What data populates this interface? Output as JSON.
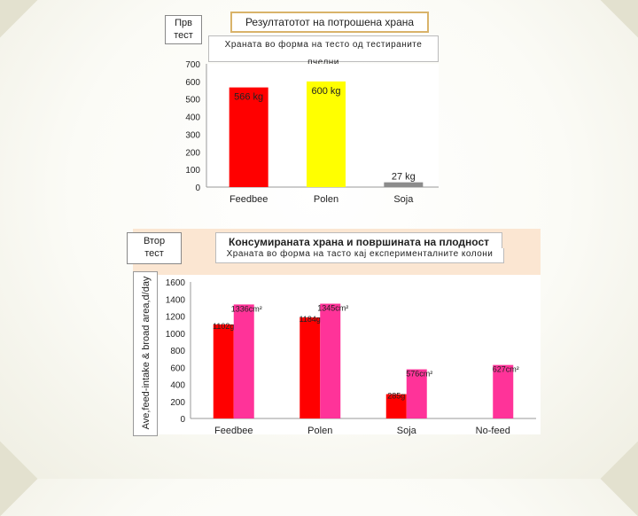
{
  "test1": {
    "label": "Прв\nтест",
    "title": "Резултатотот на потрошена храна",
    "subtitle": "Храната во форма на тесто од тестираните пчелни"
  },
  "test2": {
    "label": "Втор\nтест",
    "title": "Консумираната храна и површината на плодност",
    "subtitle": "Храната во форма на тасто кај експерименталните колони",
    "ylabel": "Ave,feed-intake & broad area,d/day"
  },
  "colors": {
    "red": "#ff0000",
    "yellow": "#ffff00",
    "gray": "#8c8c8c",
    "pink": "#ff3399"
  },
  "chart_data": [
    {
      "type": "bar",
      "categories": [
        "Feedbee",
        "Polen",
        "Soja"
      ],
      "values": [
        566,
        600,
        27
      ],
      "data_labels": [
        "566 kg",
        "600 kg",
        "27 kg"
      ],
      "ylim": [
        0,
        700
      ],
      "yticks": [
        0,
        100,
        200,
        300,
        400,
        500,
        600,
        700
      ],
      "colors": [
        "#ff0000",
        "#ffff00",
        "#8c8c8c"
      ],
      "grid": false
    },
    {
      "type": "bar",
      "categories": [
        "Feedbee",
        "Polen",
        "Soja",
        "No-feed"
      ],
      "series": [
        {
          "values": [
            1102,
            1184,
            285,
            null
          ],
          "labels": [
            "1102g",
            "1184g",
            "285g",
            ""
          ],
          "color": "#ff0000"
        },
        {
          "values": [
            1336,
            1345,
            576,
            627
          ],
          "labels": [
            "1336cm²",
            "1345cm²",
            "576cm²",
            "627cm²"
          ],
          "color": "#ff3399"
        }
      ],
      "ylim": [
        0,
        1600
      ],
      "yticks": [
        0,
        200,
        400,
        600,
        800,
        1000,
        1200,
        1400,
        1600
      ],
      "grid": false
    }
  ]
}
